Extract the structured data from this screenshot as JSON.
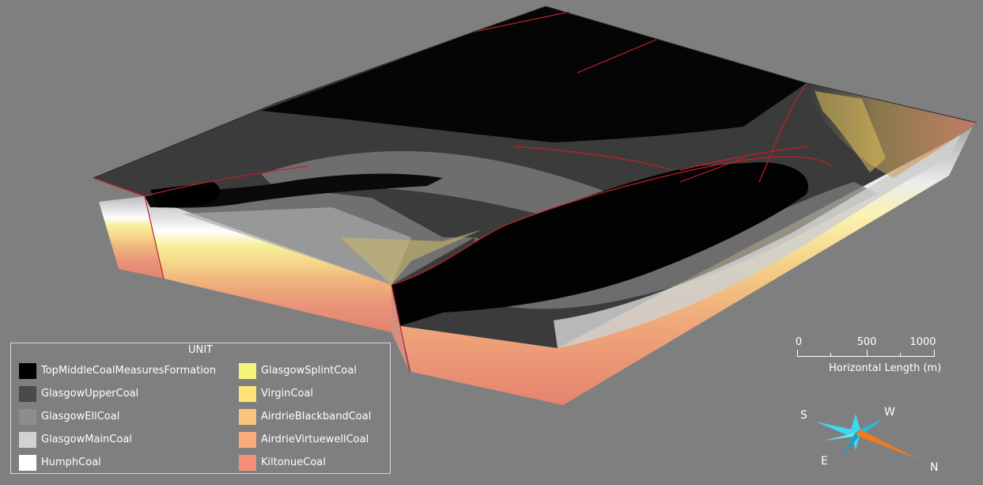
{
  "legend": {
    "title": "UNIT",
    "items": [
      {
        "label": "TopMiddleCoalMeasuresFormation",
        "color": "#000000"
      },
      {
        "label": "GlasgowUpperCoal",
        "color": "#4a4a4a"
      },
      {
        "label": "GlasgowEllCoal",
        "color": "#8d8d8d"
      },
      {
        "label": "GlasgowMainCoal",
        "color": "#d2d2d2"
      },
      {
        "label": "HumphCoal",
        "color": "#ffffff"
      },
      {
        "label": "GlasgowSplintCoal",
        "color": "#f7f47e"
      },
      {
        "label": "VirginCoal",
        "color": "#fce279"
      },
      {
        "label": "AirdrieBlackbandCoal",
        "color": "#fbc57d"
      },
      {
        "label": "AirdrieVirtuewellCoal",
        "color": "#f9ab7c"
      },
      {
        "label": "KiltonueCoal",
        "color": "#f38f7a"
      }
    ]
  },
  "scale_bar": {
    "labels": [
      "0",
      "500",
      "1000"
    ],
    "caption": "Horizontal Length (m)"
  },
  "compass": {
    "s": "S",
    "w": "W",
    "e": "E",
    "n": "N",
    "colors": {
      "primary": "#3fd6ef",
      "north": "#f07a1c"
    }
  },
  "colors": {
    "background": "#7f7f7f",
    "fault": "#c0202a"
  }
}
